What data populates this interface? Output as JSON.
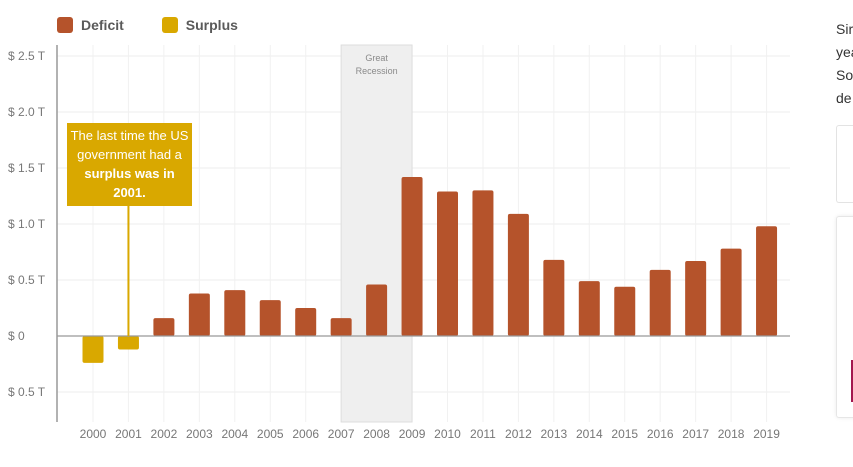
{
  "legend": {
    "deficit_label": "Deficit",
    "surplus_label": "Surplus",
    "deficit_color": "#b5532b",
    "surplus_color": "#d9a800"
  },
  "annotation": {
    "callout_text_pre": "The last time the US government had a",
    "callout_text_bold": "surplus was in 2001.",
    "recession_label": "Great Recession"
  },
  "side_panel": {
    "text_fragments": [
      "Sir",
      "yea",
      "So",
      "de"
    ]
  },
  "chart_data": {
    "type": "bar",
    "categories": [
      "2000",
      "2001",
      "2002",
      "2003",
      "2004",
      "2005",
      "2006",
      "2007",
      "2008",
      "2009",
      "2010",
      "2011",
      "2012",
      "2013",
      "2014",
      "2015",
      "2016",
      "2017",
      "2018",
      "2019"
    ],
    "series": [
      {
        "name": "Deficit",
        "color": "#b5532b",
        "values": [
          0,
          0,
          0.16,
          0.38,
          0.41,
          0.32,
          0.25,
          0.16,
          0.46,
          1.42,
          1.29,
          1.3,
          1.09,
          0.68,
          0.49,
          0.44,
          0.59,
          0.67,
          0.78,
          0.98
        ]
      },
      {
        "name": "Surplus",
        "color": "#d9a800",
        "values": [
          0.24,
          0.12,
          0,
          0,
          0,
          0,
          0,
          0,
          0,
          0,
          0,
          0,
          0,
          0,
          0,
          0,
          0,
          0,
          0,
          0
        ]
      }
    ],
    "y_ticks": [
      {
        "value": 2.5,
        "label": "$ 2.5 T"
      },
      {
        "value": 2.0,
        "label": "$ 2.0 T"
      },
      {
        "value": 1.5,
        "label": "$ 1.5 T"
      },
      {
        "value": 1.0,
        "label": "$ 1.0 T"
      },
      {
        "value": 0.5,
        "label": "$ 0.5 T"
      },
      {
        "value": 0,
        "label": "$ 0"
      },
      {
        "value": -0.5,
        "label": "$ 0.5 T"
      }
    ],
    "ylim": [
      -0.75,
      2.5
    ],
    "shaded_region": {
      "from": "2007",
      "to": "2009"
    },
    "grid": true
  }
}
